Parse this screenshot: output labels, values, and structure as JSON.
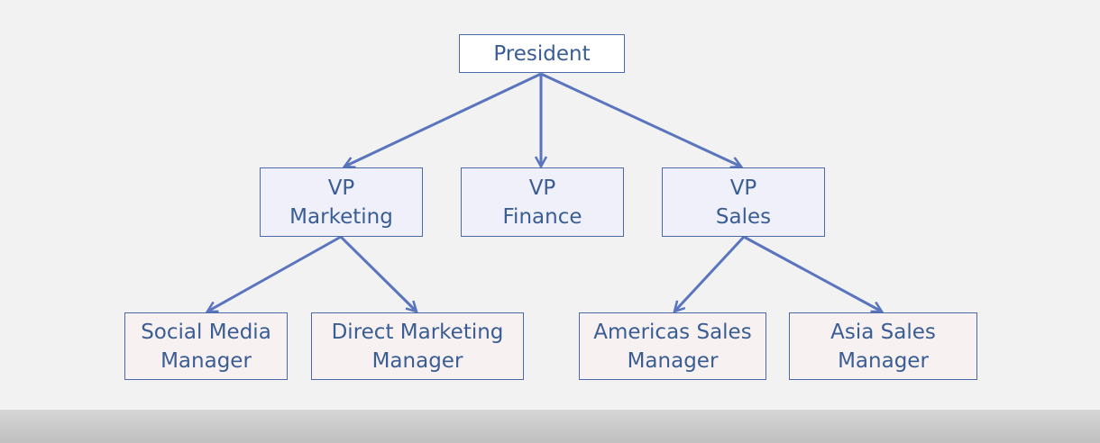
{
  "org_chart": {
    "president": {
      "label": "President"
    },
    "vps": [
      {
        "line1": "VP",
        "line2": "Marketing"
      },
      {
        "line1": "VP",
        "line2": "Finance"
      },
      {
        "line1": "VP",
        "line2": "Sales"
      }
    ],
    "managers": [
      {
        "line1": "Social Media",
        "line2": "Manager",
        "reports_to": "VP Marketing"
      },
      {
        "line1": "Direct Marketing",
        "line2": "Manager",
        "reports_to": "VP Marketing"
      },
      {
        "line1": "Americas Sales",
        "line2": "Manager",
        "reports_to": "VP Sales"
      },
      {
        "line1": "Asia Sales",
        "line2": "Manager",
        "reports_to": "VP Sales"
      }
    ],
    "colors": {
      "border": "#4d6aa8",
      "text": "#3a5d94",
      "arrow": "#5a74bd",
      "president_fill": "#ffffff",
      "vp_fill": "#f0f0fb",
      "manager_fill": "#f8f1f1",
      "background": "#f2f2f2"
    }
  }
}
